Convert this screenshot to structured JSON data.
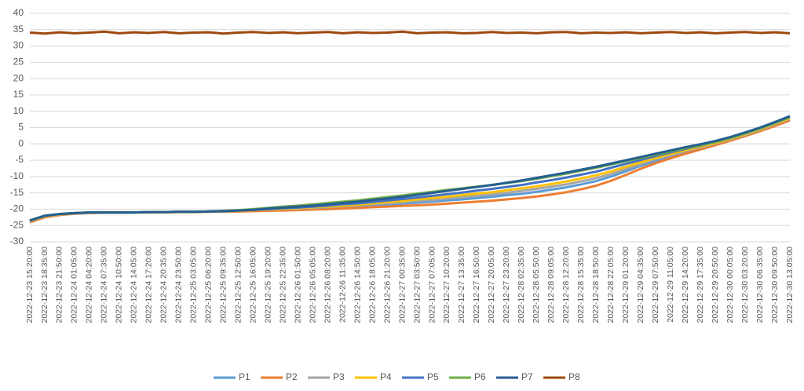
{
  "chart_data": {
    "type": "line",
    "categories": [
      "2022-12-23 15:20:00",
      "2022-12-23 18:35:00",
      "2022-12-23 21:50:00",
      "2022-12-24 01:05:00",
      "2022-12-24 04:20:00",
      "2022-12-24 07:35:00",
      "2022-12-24 10:50:00",
      "2022-12-24 14:05:00",
      "2022-12-24 17:20:00",
      "2022-12-24 20:35:00",
      "2022-12-24 23:50:00",
      "2022-12-25 03:05:00",
      "2022-12-25 06:20:00",
      "2022-12-25 09:35:00",
      "2022-12-25 12:50:00",
      "2022-12-25 16:05:00",
      "2022-12-25 19:20:00",
      "2022-12-25 22:35:00",
      "2022-12-26 01:50:00",
      "2022-12-26 05:05:00",
      "2022-12-26 08:20:00",
      "2022-12-26 11:35:00",
      "2022-12-26 14:50:00",
      "2022-12-26 18:05:00",
      "2022-12-26 21:20:00",
      "2022-12-27 00:35:00",
      "2022-12-27 03:50:00",
      "2022-12-27 07:05:00",
      "2022-12-27 10:20:00",
      "2022-12-27 13:35:00",
      "2022-12-27 16:50:00",
      "2022-12-27 20:05:00",
      "2022-12-27 23:20:00",
      "2022-12-28 02:35:00",
      "2022-12-28 05:50:00",
      "2022-12-28 09:05:00",
      "2022-12-28 12:20:00",
      "2022-12-28 15:35:00",
      "2022-12-28 18:50:00",
      "2022-12-28 22:05:00",
      "2022-12-29 01:20:00",
      "2022-12-29 04:35:00",
      "2022-12-29 07:50:00",
      "2022-12-29 11:05:00",
      "2022-12-29 14:20:00",
      "2022-12-29 17:35:00",
      "2022-12-29 20:50:00",
      "2022-12-30 00:05:00",
      "2022-12-30 03:20:00",
      "2022-12-30 06:35:00",
      "2022-12-30 09:50:00",
      "2022-12-30 13:05:00"
    ],
    "series": [
      {
        "name": "P1",
        "color": "#5b9bd5",
        "values": [
          -23.8,
          -22.2,
          -21.6,
          -21.3,
          -21.1,
          -21,
          -21,
          -21,
          -20.9,
          -20.9,
          -20.8,
          -20.8,
          -20.7,
          -20.7,
          -20.5,
          -20.4,
          -20.3,
          -20.2,
          -20,
          -19.8,
          -19.6,
          -19.4,
          -19.1,
          -18.9,
          -18.6,
          -18.3,
          -18,
          -17.7,
          -17.3,
          -17,
          -16.6,
          -16.2,
          -15.7,
          -15.3,
          -14.7,
          -14,
          -13.3,
          -12.4,
          -11.4,
          -10,
          -8.4,
          -6.7,
          -5.2,
          -3.8,
          -2.5,
          -1.3,
          -0.1,
          1.3,
          2.7,
          4.2,
          5.8,
          7.5
        ]
      },
      {
        "name": "P2",
        "color": "#ed7d31",
        "values": [
          -24,
          -22.5,
          -21.8,
          -21.4,
          -21.2,
          -21.1,
          -21.1,
          -21,
          -21,
          -21,
          -20.9,
          -20.9,
          -20.8,
          -20.8,
          -20.7,
          -20.6,
          -20.5,
          -20.4,
          -20.3,
          -20.1,
          -20,
          -19.8,
          -19.6,
          -19.4,
          -19.2,
          -19,
          -18.8,
          -18.6,
          -18.3,
          -18,
          -17.7,
          -17.4,
          -17,
          -16.6,
          -16.1,
          -15.5,
          -14.8,
          -13.9,
          -12.8,
          -11.3,
          -9.5,
          -7.6,
          -5.9,
          -4.4,
          -3,
          -1.7,
          -0.4,
          1,
          2.4,
          3.9,
          5.5,
          7.2
        ]
      },
      {
        "name": "P3",
        "color": "#a5a5a5",
        "values": [
          -23.7,
          -22.2,
          -21.6,
          -21.3,
          -21.1,
          -21,
          -21,
          -21,
          -20.9,
          -20.9,
          -20.8,
          -20.8,
          -20.7,
          -20.7,
          -20.5,
          -20.3,
          -20.2,
          -20,
          -19.9,
          -19.6,
          -19.4,
          -19.1,
          -18.8,
          -18.5,
          -18.2,
          -17.9,
          -17.5,
          -17.2,
          -16.7,
          -16.3,
          -15.9,
          -15.5,
          -15,
          -14.4,
          -13.8,
          -13.1,
          -12.4,
          -11.5,
          -10.5,
          -9.2,
          -7.7,
          -6.2,
          -4.7,
          -3.4,
          -2.2,
          -1.1,
          0.1,
          1.4,
          2.8,
          4.3,
          6,
          7.7
        ]
      },
      {
        "name": "P4",
        "color": "#ffc000",
        "values": [
          -23.6,
          -22.1,
          -21.6,
          -21.2,
          -21,
          -21,
          -21,
          -21,
          -20.9,
          -20.9,
          -20.8,
          -20.8,
          -20.7,
          -20.6,
          -20.5,
          -20.3,
          -20.1,
          -19.9,
          -19.7,
          -19.4,
          -19.2,
          -18.9,
          -18.6,
          -18.2,
          -17.8,
          -17.5,
          -17,
          -16.6,
          -16.2,
          -15.7,
          -15.2,
          -14.8,
          -14.2,
          -13.6,
          -13,
          -12.3,
          -11.5,
          -10.6,
          -9.6,
          -8.4,
          -7,
          -5.6,
          -4.3,
          -3.1,
          -1.9,
          -0.8,
          0.3,
          1.6,
          3,
          4.5,
          6.2,
          7.9
        ]
      },
      {
        "name": "P5",
        "color": "#4472c4",
        "values": [
          -23.5,
          -22,
          -21.5,
          -21.2,
          -21,
          -21,
          -21,
          -21,
          -20.9,
          -20.9,
          -20.8,
          -20.8,
          -20.7,
          -20.6,
          -20.4,
          -20.2,
          -20,
          -19.7,
          -19.5,
          -19.2,
          -18.9,
          -18.5,
          -18.2,
          -17.8,
          -17.3,
          -16.9,
          -16.4,
          -15.9,
          -15.4,
          -14.9,
          -14.3,
          -13.8,
          -13.2,
          -12.6,
          -11.8,
          -11.1,
          -10.3,
          -9.4,
          -8.5,
          -7.3,
          -6.1,
          -4.9,
          -3.7,
          -2.6,
          -1.5,
          -0.5,
          0.6,
          1.8,
          3.2,
          4.7,
          6.4,
          8.2
        ]
      },
      {
        "name": "P6",
        "color": "#70ad47",
        "values": [
          -23.4,
          -22,
          -21.5,
          -21.2,
          -21,
          -21,
          -21,
          -21,
          -20.9,
          -20.9,
          -20.8,
          -20.8,
          -20.7,
          -20.5,
          -20.3,
          -20,
          -19.6,
          -19.2,
          -18.9,
          -18.5,
          -18.1,
          -17.7,
          -17.3,
          -16.8,
          -16.3,
          -15.8,
          -15.2,
          -14.7,
          -14.1,
          -13.6,
          -13.1,
          -12.6,
          -12,
          -11.4,
          -10.7,
          -9.9,
          -9.1,
          -8.2,
          -7.3,
          -6.3,
          -5.3,
          -4.3,
          -3.3,
          -2.3,
          -1.3,
          -0.4,
          0.6,
          1.8,
          3.2,
          4.7,
          6.4,
          8.2
        ]
      },
      {
        "name": "P7",
        "color": "#255e91",
        "values": [
          -23.5,
          -22,
          -21.5,
          -21.2,
          -21,
          -21,
          -21,
          -21,
          -20.9,
          -20.9,
          -20.8,
          -20.8,
          -20.7,
          -20.6,
          -20.4,
          -20.2,
          -19.8,
          -19.5,
          -19.2,
          -18.9,
          -18.5,
          -18.1,
          -17.7,
          -17.2,
          -16.7,
          -16.2,
          -15.6,
          -15,
          -14.4,
          -13.8,
          -13.2,
          -12.6,
          -11.9,
          -11.2,
          -10.4,
          -9.6,
          -8.8,
          -7.9,
          -7,
          -6,
          -5,
          -4,
          -3,
          -2,
          -1,
          -0.1,
          0.9,
          2.1,
          3.5,
          5,
          6.7,
          8.5
        ]
      },
      {
        "name": "P8",
        "color": "#9e480e",
        "values": [
          34.1,
          33.8,
          34.2,
          33.9,
          34.1,
          34.4,
          33.9,
          34.2,
          34,
          34.3,
          33.9,
          34.1,
          34.2,
          33.8,
          34.1,
          34.3,
          34,
          34.2,
          33.9,
          34.1,
          34.3,
          33.9,
          34.2,
          34,
          34.1,
          34.4,
          33.9,
          34.1,
          34.2,
          33.9,
          34,
          34.3,
          34,
          34.1,
          33.9,
          34.2,
          34.3,
          33.9,
          34.1,
          34,
          34.2,
          33.9,
          34.1,
          34.3,
          34,
          34.2,
          33.9,
          34.1,
          34.3,
          34,
          34.2,
          33.9
        ]
      }
    ],
    "ylim": [
      -30,
      40
    ],
    "yticks": [
      -30,
      -25,
      -20,
      -15,
      -10,
      -5,
      0,
      5,
      10,
      15,
      20,
      25,
      30,
      35,
      40
    ],
    "grid": true,
    "legend": "bottom"
  }
}
